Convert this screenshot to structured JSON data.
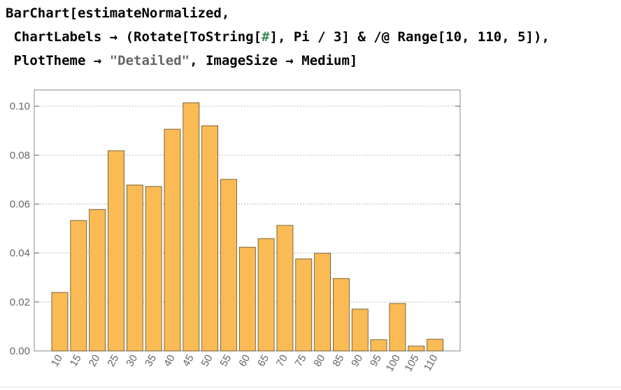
{
  "code_lines": [
    [
      {
        "text": "BarChart[estimateNormalized,"
      }
    ],
    [
      {
        "text": " ChartLabels → (Rotate[ToString["
      },
      {
        "text": "#",
        "style": "slot"
      },
      {
        "text": "], Pi / 3] & /@ Range[10, 110, 5]),"
      }
    ],
    [
      {
        "text": " PlotTheme → "
      },
      {
        "text": "\"Detailed\"",
        "style": "string"
      },
      {
        "text": ", ImageSize → Medium]"
      }
    ]
  ],
  "chart_data": {
    "type": "bar",
    "categories": [
      "10",
      "15",
      "20",
      "25",
      "30",
      "35",
      "40",
      "45",
      "50",
      "55",
      "60",
      "65",
      "70",
      "75",
      "80",
      "85",
      "90",
      "95",
      "100",
      "105",
      "110"
    ],
    "values": [
      0.0239,
      0.0533,
      0.0578,
      0.0818,
      0.0678,
      0.0672,
      0.0906,
      0.1014,
      0.092,
      0.0701,
      0.0424,
      0.0459,
      0.0513,
      0.0376,
      0.0399,
      0.0296,
      0.0171,
      0.0046,
      0.0194,
      0.002,
      0.0048
    ],
    "color": "#fbbb54",
    "ylim": [
      0,
      0.1066
    ],
    "yticks": [
      {
        "value": 0,
        "label": "0.00"
      },
      0.02,
      0.04,
      0.06,
      0.08,
      {
        "value": 0.1,
        "label": "0.10"
      }
    ],
    "grid": true,
    "label_rotation": -60
  }
}
